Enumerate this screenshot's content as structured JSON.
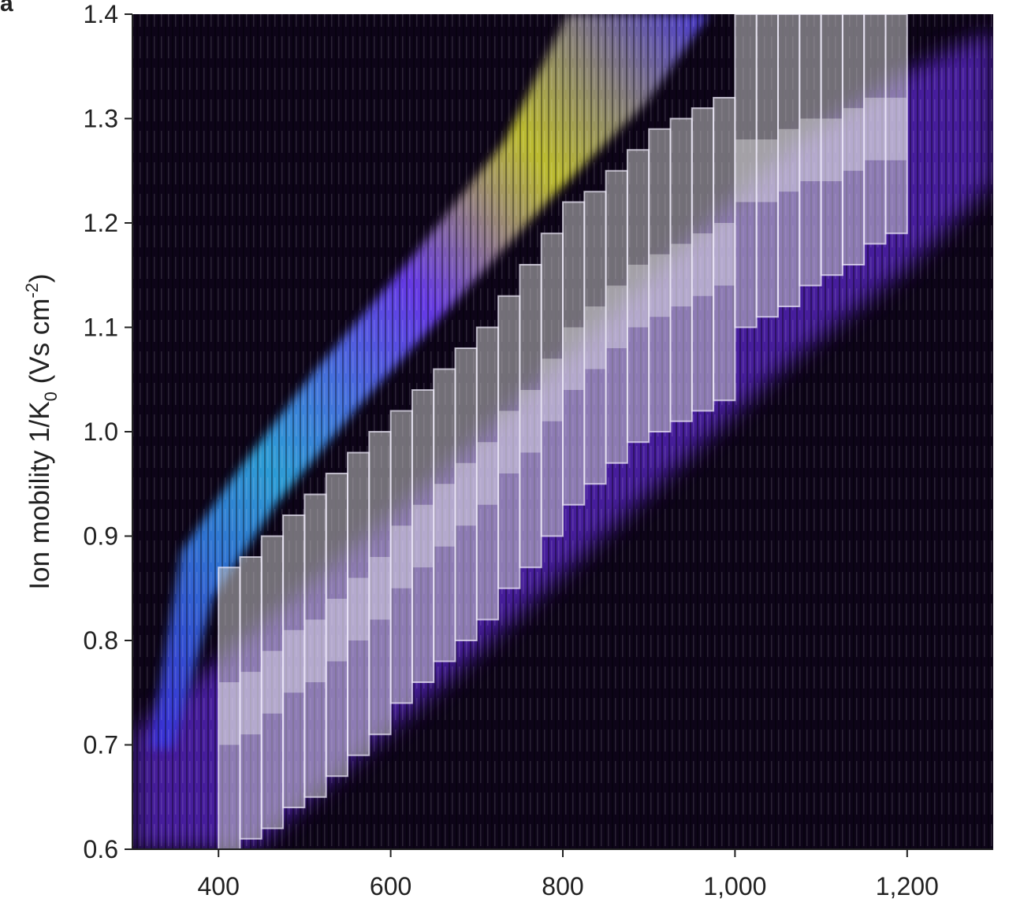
{
  "chart_data": {
    "type": "rect",
    "panel_label": "a",
    "y_label": {
      "text": "Ion mobility 1/K",
      "sub": "0",
      "mid": " (Vs cm",
      "sup": "-2",
      "end": ")"
    },
    "xlim": [
      300,
      1300
    ],
    "xticks": [
      400,
      600,
      800,
      {
        "value": 1000,
        "label": "1,000"
      },
      {
        "value": 1200,
        "label": "1,200"
      }
    ],
    "ylim": [
      0.6,
      1.4
    ],
    "yticks": [
      0.6,
      0.7,
      0.8,
      0.9,
      {
        "value": 1,
        "label": "1.0"
      },
      1.1,
      1.2,
      1.3,
      1.4
    ],
    "color": "#c8c8c8",
    "windows": [
      {
        "mz": [
          400,
          425
        ],
        "im": [
          0.6,
          0.7,
          0.76,
          0.87
        ]
      },
      {
        "mz": [
          425,
          450
        ],
        "im": [
          0.61,
          0.71,
          0.77,
          0.88
        ]
      },
      {
        "mz": [
          450,
          475
        ],
        "im": [
          0.62,
          0.73,
          0.79,
          0.9
        ]
      },
      {
        "mz": [
          475,
          500
        ],
        "im": [
          0.64,
          0.75,
          0.81,
          0.92
        ]
      },
      {
        "mz": [
          500,
          525
        ],
        "im": [
          0.65,
          0.76,
          0.82,
          0.94
        ]
      },
      {
        "mz": [
          525,
          550
        ],
        "im": [
          0.67,
          0.78,
          0.84,
          0.96
        ]
      },
      {
        "mz": [
          550,
          575
        ],
        "im": [
          0.69,
          0.8,
          0.86,
          0.98
        ]
      },
      {
        "mz": [
          575,
          600
        ],
        "im": [
          0.71,
          0.82,
          0.88,
          1.0
        ]
      },
      {
        "mz": [
          600,
          625
        ],
        "im": [
          0.74,
          0.85,
          0.91,
          1.02
        ]
      },
      {
        "mz": [
          625,
          650
        ],
        "im": [
          0.76,
          0.87,
          0.93,
          1.04
        ]
      },
      {
        "mz": [
          650,
          675
        ],
        "im": [
          0.78,
          0.89,
          0.95,
          1.06
        ]
      },
      {
        "mz": [
          675,
          700
        ],
        "im": [
          0.8,
          0.91,
          0.97,
          1.08
        ]
      },
      {
        "mz": [
          700,
          725
        ],
        "im": [
          0.82,
          0.93,
          0.99,
          1.1
        ]
      },
      {
        "mz": [
          725,
          750
        ],
        "im": [
          0.85,
          0.96,
          1.02,
          1.13
        ]
      },
      {
        "mz": [
          750,
          775
        ],
        "im": [
          0.87,
          0.98,
          1.04,
          1.16
        ]
      },
      {
        "mz": [
          775,
          800
        ],
        "im": [
          0.9,
          1.01,
          1.07,
          1.19
        ]
      },
      {
        "mz": [
          800,
          825
        ],
        "im": [
          0.93,
          1.04,
          1.1,
          1.22
        ]
      },
      {
        "mz": [
          825,
          850
        ],
        "im": [
          0.95,
          1.06,
          1.12,
          1.23
        ]
      },
      {
        "mz": [
          850,
          875
        ],
        "im": [
          0.97,
          1.08,
          1.14,
          1.25
        ]
      },
      {
        "mz": [
          875,
          900
        ],
        "im": [
          0.99,
          1.1,
          1.16,
          1.27
        ]
      },
      {
        "mz": [
          900,
          925
        ],
        "im": [
          1.0,
          1.11,
          1.17,
          1.29
        ]
      },
      {
        "mz": [
          925,
          950
        ],
        "im": [
          1.01,
          1.12,
          1.18,
          1.3
        ]
      },
      {
        "mz": [
          950,
          975
        ],
        "im": [
          1.02,
          1.13,
          1.19,
          1.31
        ]
      },
      {
        "mz": [
          975,
          1000
        ],
        "im": [
          1.03,
          1.14,
          1.2,
          1.32
        ]
      },
      {
        "mz": [
          1000,
          1025
        ],
        "im": [
          1.1,
          1.22,
          1.28,
          1.4
        ]
      },
      {
        "mz": [
          1025,
          1050
        ],
        "im": [
          1.11,
          1.22,
          1.28,
          1.4
        ]
      },
      {
        "mz": [
          1050,
          1075
        ],
        "im": [
          1.12,
          1.23,
          1.29,
          1.4
        ]
      },
      {
        "mz": [
          1075,
          1100
        ],
        "im": [
          1.14,
          1.24,
          1.3,
          1.4
        ]
      },
      {
        "mz": [
          1100,
          1125
        ],
        "im": [
          1.15,
          1.24,
          1.3,
          1.4
        ]
      },
      {
        "mz": [
          1125,
          1150
        ],
        "im": [
          1.16,
          1.25,
          1.31,
          1.4
        ]
      },
      {
        "mz": [
          1150,
          1175
        ],
        "im": [
          1.18,
          1.26,
          1.32,
          1.4
        ]
      },
      {
        "mz": [
          1175,
          1200
        ],
        "im": [
          1.19,
          1.26,
          1.32,
          1.4
        ]
      }
    ]
  }
}
